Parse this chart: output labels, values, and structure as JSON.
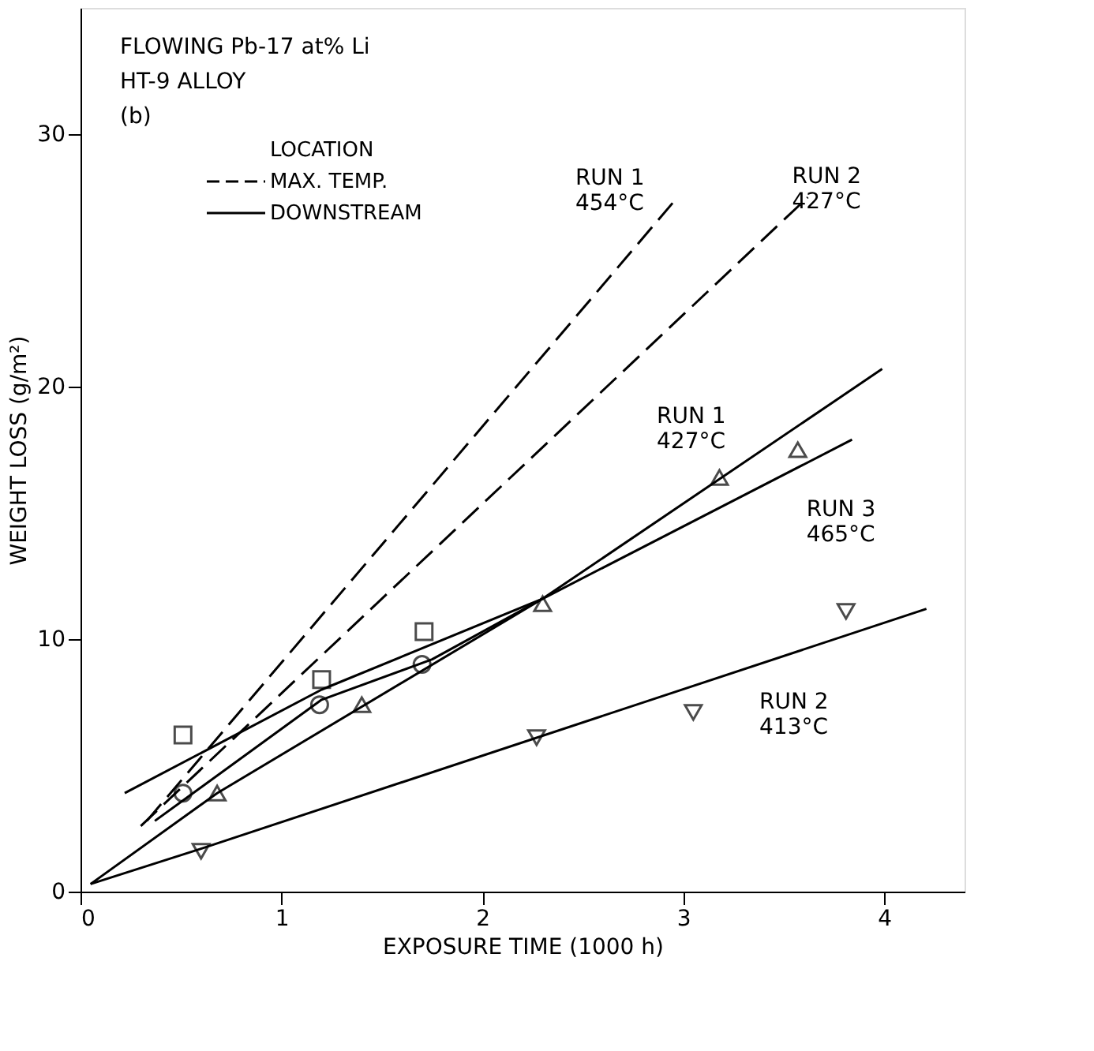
{
  "chart_data": {
    "type": "line",
    "xlabel": "EXPOSURE TIME (1000 h)",
    "ylabel": "WEIGHT LOSS (g/m²)",
    "legend_title": "LOCATION",
    "xlim": [
      0,
      4.4
    ],
    "ylim": [
      0,
      35
    ],
    "xticks": [
      0,
      1,
      2,
      3,
      4
    ],
    "yticks": [
      0,
      10,
      20,
      30
    ],
    "grid": false,
    "legend": "top left",
    "annotations": [
      "FLOWING Pb-17 at% Li",
      "HT-9 ALLOY",
      "(b)",
      {
        "text": "RUN 1\n454°C",
        "x": 2.95,
        "y": 27.3
      },
      {
        "text": "RUN 2\n427°C",
        "x": 3.62,
        "y": 27.5
      },
      {
        "text": "RUN 1\n427°C",
        "x": 3.3,
        "y": 17.0
      },
      {
        "text": "RUN 3\n465°C",
        "x": 3.55,
        "y": 16.7
      },
      {
        "text": "RUN 2\n413°C",
        "x": 3.3,
        "y": 8.8
      }
    ],
    "series": [
      {
        "name": "MAX. TEMP.",
        "line_style": "dashed",
        "color": "#000000",
        "x": [
          0.33,
          2.95
        ],
        "values": [
          2.8,
          27.3
        ]
      },
      {
        "line_style": "dashed",
        "color": "#000000",
        "x": [
          0.3,
          3.62
        ],
        "values": [
          2.6,
          27.5
        ]
      },
      {
        "name": "DOWNSTREAM",
        "line_style": "solid",
        "color": "#000000",
        "x": [
          0.05,
          0.68,
          2.3,
          3.99
        ],
        "values": [
          0.3,
          3.9,
          11.6,
          20.7
        ]
      },
      {
        "line_style": "solid",
        "color": "#000000",
        "x": [
          0.22,
          1.2,
          2.3,
          3.84
        ],
        "values": [
          3.9,
          8.0,
          11.6,
          17.9
        ]
      },
      {
        "line_style": "solid",
        "color": "#000000",
        "x": [
          0.37,
          1.2,
          1.75,
          2.3
        ],
        "values": [
          2.8,
          7.6,
          9.2,
          11.6
        ]
      },
      {
        "line_style": "solid",
        "color": "#000000",
        "x": [
          0.05,
          0.6,
          4.21
        ],
        "values": [
          0.3,
          1.7,
          11.2
        ]
      },
      {
        "type": "scatter",
        "marker": "square",
        "color": "#000000",
        "x": [
          0.51,
          1.2,
          1.71
        ],
        "values": [
          6.2,
          8.4,
          10.3
        ]
      },
      {
        "type": "scatter",
        "marker": "circle",
        "color": "#000000",
        "x": [
          0.51,
          1.19,
          1.7
        ],
        "values": [
          3.9,
          7.4,
          9.0
        ]
      },
      {
        "type": "scatter",
        "marker": "triangle",
        "color": "#000000",
        "x": [
          0.68,
          1.4,
          2.3,
          3.18,
          3.57
        ],
        "values": [
          3.9,
          7.4,
          11.4,
          16.4,
          17.5
        ]
      },
      {
        "type": "scatter",
        "marker": "triangle-down",
        "color": "#000000",
        "x": [
          0.6,
          2.27,
          3.05,
          3.81
        ],
        "values": [
          1.6,
          6.1,
          7.1,
          11.1
        ]
      }
    ]
  }
}
